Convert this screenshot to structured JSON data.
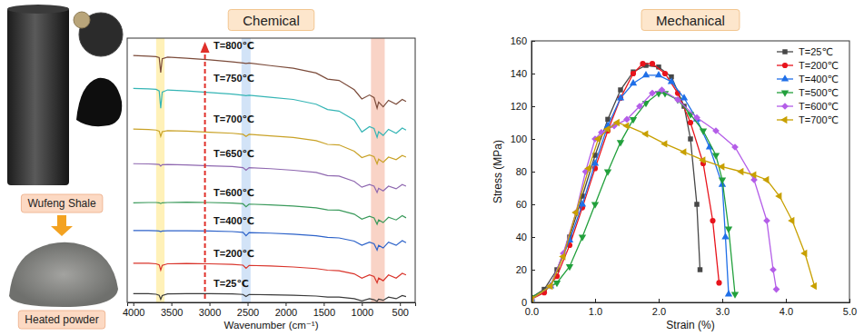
{
  "images": {
    "top_label": "Wufeng Shale",
    "bottom_label": "Heated powder"
  },
  "chart_data": [
    {
      "type": "line",
      "title": "Chemical",
      "x_label": "Wavenumber (cm⁻¹)",
      "tick_labels": "x",
      "xlim": [
        4080,
        300
      ],
      "xticks": [
        4000,
        3500,
        3000,
        2500,
        2000,
        1500,
        1000,
        500
      ],
      "ylim": [
        0,
        100
      ],
      "bands": [
        {
          "from": 3700,
          "to": 3590,
          "color": "#fff1b8"
        },
        {
          "from": 2580,
          "to": 2460,
          "color": "#d2e3f7"
        },
        {
          "from": 880,
          "to": 700,
          "color": "#f9d3c6"
        }
      ],
      "x": [
        4000,
        3800,
        3700,
        3660,
        3640,
        3620,
        3550,
        3300,
        3000,
        2700,
        2560,
        2520,
        2480,
        2200,
        1900,
        1600,
        1450,
        1300,
        1100,
        1000,
        900,
        840,
        800,
        780,
        720,
        650,
        550,
        470,
        420
      ],
      "series": [
        {
          "name": "T=25℃",
          "color": "#3a3a3a",
          "values": [
            3.3,
            3.3,
            3.1,
            2.7,
            1.2,
            2.6,
            3.2,
            3.3,
            3.3,
            3.2,
            3.0,
            2.2,
            3.0,
            2.9,
            2.7,
            2.4,
            2.0,
            2.0,
            1.4,
            0.6,
            1.4,
            1.0,
            0.4,
            1.2,
            0.8,
            2.0,
            1.4,
            2.6,
            2.2
          ]
        },
        {
          "name": "T=200℃",
          "color": "#d9342b",
          "values": [
            14.8,
            14.8,
            14.6,
            14.2,
            12.2,
            14.0,
            14.6,
            14.7,
            14.6,
            14.4,
            14.1,
            12.9,
            14.0,
            13.8,
            13.4,
            12.8,
            12.2,
            12.0,
            10.8,
            9.2,
            10.4,
            9.8,
            7.4,
            9.2,
            8.2,
            10.4,
            9.2,
            11.0,
            10.4
          ]
        },
        {
          "name": "T=400℃",
          "color": "#2c62c9",
          "values": [
            27.2,
            27.2,
            27.1,
            27.0,
            26.8,
            27.0,
            27.1,
            27.1,
            27.0,
            26.8,
            26.5,
            25.2,
            26.4,
            26.2,
            25.8,
            25.2,
            24.6,
            24.4,
            23.2,
            21.6,
            22.8,
            22.2,
            19.8,
            21.6,
            20.6,
            22.8,
            21.6,
            23.4,
            22.6
          ]
        },
        {
          "name": "T=600℃",
          "color": "#3a9a5b",
          "values": [
            37.7,
            37.8,
            37.8,
            37.7,
            37.4,
            37.7,
            37.8,
            37.9,
            37.8,
            37.6,
            37.3,
            36.2,
            37.2,
            36.9,
            36.5,
            35.8,
            35.0,
            34.9,
            33.4,
            31.5,
            32.6,
            32.0,
            29.6,
            31.2,
            30.2,
            32.2,
            31.2,
            32.8,
            32.0
          ]
        },
        {
          "name": "T=650℃",
          "color": "#8f68b0",
          "values": [
            52.5,
            52.4,
            52.3,
            52.2,
            51.6,
            52.1,
            52.2,
            52.0,
            51.7,
            51.4,
            51.0,
            50.0,
            51.0,
            50.6,
            50.0,
            49.2,
            48.0,
            47.8,
            45.8,
            43.6,
            44.6,
            44.0,
            41.6,
            43.2,
            42.2,
            44.0,
            43.0,
            44.6,
            44.0
          ]
        },
        {
          "name": "T=700℃",
          "color": "#c9a227",
          "values": [
            65.6,
            65.4,
            65.2,
            64.8,
            62.8,
            64.6,
            65.0,
            64.8,
            64.4,
            64.0,
            63.6,
            62.8,
            63.6,
            63.0,
            62.4,
            61.2,
            59.8,
            59.6,
            57.2,
            54.8,
            55.8,
            55.2,
            52.4,
            54.2,
            53.0,
            55.0,
            54.0,
            55.6,
            55.0
          ]
        },
        {
          "name": "T=750℃",
          "color": "#35b5b5",
          "values": [
            81.0,
            80.8,
            80.6,
            80.0,
            73.5,
            79.6,
            80.4,
            80.0,
            79.4,
            78.8,
            78.4,
            78.2,
            78.4,
            77.6,
            76.8,
            75.0,
            73.0,
            72.4,
            69.0,
            64.5,
            66.5,
            65.8,
            62.5,
            64.6,
            63.2,
            65.5,
            64.0,
            66.0,
            65.2
          ]
        },
        {
          "name": "T=800℃",
          "color": "#7b4b3a",
          "values": [
            93.4,
            93.2,
            93.0,
            92.6,
            87.0,
            92.2,
            92.8,
            92.4,
            91.8,
            91.0,
            90.6,
            90.4,
            90.6,
            89.6,
            88.6,
            86.8,
            84.5,
            84.0,
            80.5,
            77.0,
            78.5,
            77.5,
            73.5,
            75.8,
            74.0,
            76.5,
            75.0,
            76.8,
            76.0
          ]
        }
      ]
    },
    {
      "type": "line",
      "title": "Mechanical",
      "x_label": "Strain (%)",
      "y_label": "Stress (MPa)",
      "legend": "top right",
      "xlim": [
        0,
        5
      ],
      "xticks": [
        {
          "value": 0,
          "label": "0.0"
        },
        {
          "value": 1,
          "label": "1.0"
        },
        {
          "value": 2,
          "label": "2.0"
        },
        {
          "value": 3,
          "label": "3.0"
        },
        {
          "value": 4,
          "label": "4.0"
        },
        {
          "value": 5,
          "label": "5.0"
        }
      ],
      "ylim": [
        0,
        160
      ],
      "yticks": [
        0,
        20,
        40,
        60,
        80,
        100,
        120,
        140,
        160
      ],
      "series": [
        {
          "name": "T=25℃",
          "color": "#474747",
          "marker": "square",
          "x": [
            0,
            0.2,
            0.4,
            0.6,
            0.8,
            1.0,
            1.2,
            1.4,
            1.6,
            1.8,
            2.0,
            2.2,
            2.4,
            2.5,
            2.6,
            2.65
          ],
          "values": [
            3,
            8,
            20,
            40,
            65,
            90,
            112,
            130,
            141,
            145,
            144,
            138,
            120,
            100,
            60,
            20
          ]
        },
        {
          "name": "T=200℃",
          "color": "#e8141c",
          "marker": "circle",
          "x": [
            0,
            0.2,
            0.4,
            0.6,
            0.8,
            1.0,
            1.2,
            1.4,
            1.6,
            1.75,
            1.9,
            2.1,
            2.3,
            2.5,
            2.7,
            2.85,
            2.95
          ],
          "values": [
            2,
            6,
            16,
            35,
            58,
            82,
            105,
            125,
            140,
            146,
            146,
            140,
            128,
            110,
            85,
            50,
            12
          ]
        },
        {
          "name": "T=400℃",
          "color": "#1f6fe8",
          "marker": "triangle-up",
          "x": [
            0,
            0.3,
            0.6,
            0.8,
            1.0,
            1.2,
            1.4,
            1.6,
            1.8,
            2.0,
            2.2,
            2.4,
            2.6,
            2.8,
            3.0,
            3.05,
            3.1
          ],
          "values": [
            2,
            10,
            38,
            60,
            85,
            108,
            125,
            134,
            139,
            139,
            135,
            125,
            112,
            95,
            72,
            40,
            5
          ]
        },
        {
          "name": "T=500℃",
          "color": "#22a03c",
          "marker": "triangle-down",
          "x": [
            0,
            0.4,
            0.6,
            0.8,
            1.0,
            1.2,
            1.4,
            1.6,
            1.8,
            2.0,
            2.1,
            2.3,
            2.5,
            2.7,
            2.9,
            3.0,
            3.1,
            3.2
          ],
          "values": [
            3,
            12,
            22,
            40,
            60,
            80,
            98,
            112,
            122,
            128,
            128,
            124,
            115,
            105,
            90,
            75,
            45,
            5
          ]
        },
        {
          "name": "T=600℃",
          "color": "#b45ee8",
          "marker": "diamond",
          "x": [
            0,
            0.3,
            0.5,
            0.7,
            0.85,
            1.0,
            1.1,
            1.3,
            1.5,
            1.7,
            1.9,
            2.05,
            2.3,
            2.6,
            2.9,
            3.2,
            3.5,
            3.7,
            3.8,
            3.85
          ],
          "values": [
            2,
            10,
            30,
            55,
            80,
            100,
            104,
            108,
            112,
            120,
            128,
            130,
            124,
            113,
            105,
            95,
            75,
            50,
            20,
            8
          ]
        },
        {
          "name": "T=700℃",
          "color": "#c8a000",
          "marker": "triangle-left",
          "x": [
            0,
            0.3,
            0.5,
            0.7,
            0.9,
            1.05,
            1.2,
            1.35,
            1.5,
            1.8,
            2.1,
            2.4,
            2.7,
            3.0,
            3.3,
            3.5,
            3.7,
            3.9,
            4.1,
            4.3,
            4.45
          ],
          "values": [
            2,
            10,
            28,
            55,
            82,
            100,
            106,
            110,
            108,
            103,
            97,
            92,
            87,
            83,
            80,
            78,
            75,
            65,
            50,
            30,
            10
          ]
        }
      ]
    }
  ]
}
